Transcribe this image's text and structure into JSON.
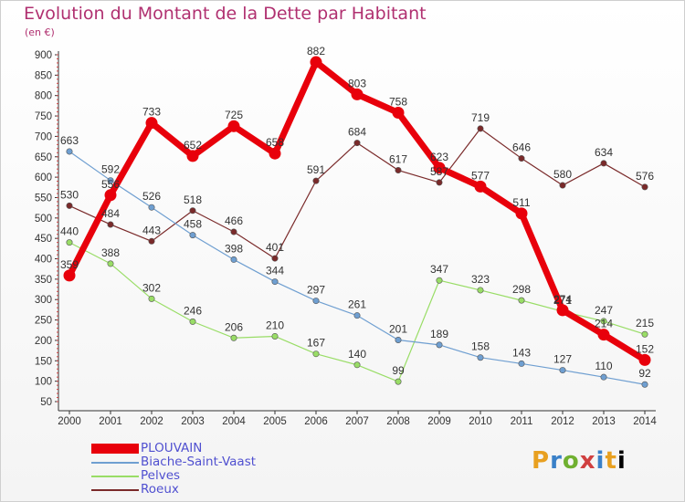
{
  "title": "Evolution du Montant de la Dette par Habitant",
  "subtitle": "(en €)",
  "logo": [
    "P",
    "r",
    "o",
    "x",
    "i",
    "t",
    "i"
  ],
  "chart_data": {
    "type": "line",
    "x": [
      "2000",
      "2001",
      "2002",
      "2003",
      "2004",
      "2005",
      "2006",
      "2007",
      "2008",
      "2009",
      "2010",
      "2011",
      "2012",
      "2013",
      "2014"
    ],
    "ylim": [
      50,
      900
    ],
    "yticks": [
      50,
      100,
      150,
      200,
      250,
      300,
      350,
      400,
      450,
      500,
      550,
      600,
      650,
      700,
      750,
      800,
      850,
      900
    ],
    "grid": false,
    "legend_position": "bottom-left",
    "series": [
      {
        "name": "PLOUVAIN",
        "color": "#e8000b",
        "values": [
          359,
          556,
          733,
          652,
          725,
          658,
          882,
          803,
          758,
          623,
          577,
          511,
          274,
          214,
          152
        ]
      },
      {
        "name": "Biache-Saint-Vaast",
        "color": "#6f9fd1",
        "values": [
          663,
          592,
          526,
          458,
          398,
          344,
          297,
          261,
          201,
          189,
          158,
          143,
          127,
          110,
          92
        ]
      },
      {
        "name": "Pelves",
        "color": "#99dd66",
        "values": [
          440,
          388,
          302,
          246,
          206,
          210,
          167,
          140,
          99,
          347,
          323,
          298,
          271,
          247,
          215
        ]
      },
      {
        "name": "Roeux",
        "color": "#7a2a2a",
        "values": [
          530,
          484,
          443,
          518,
          466,
          401,
          591,
          684,
          617,
          587,
          719,
          646,
          580,
          634,
          576
        ]
      }
    ]
  }
}
